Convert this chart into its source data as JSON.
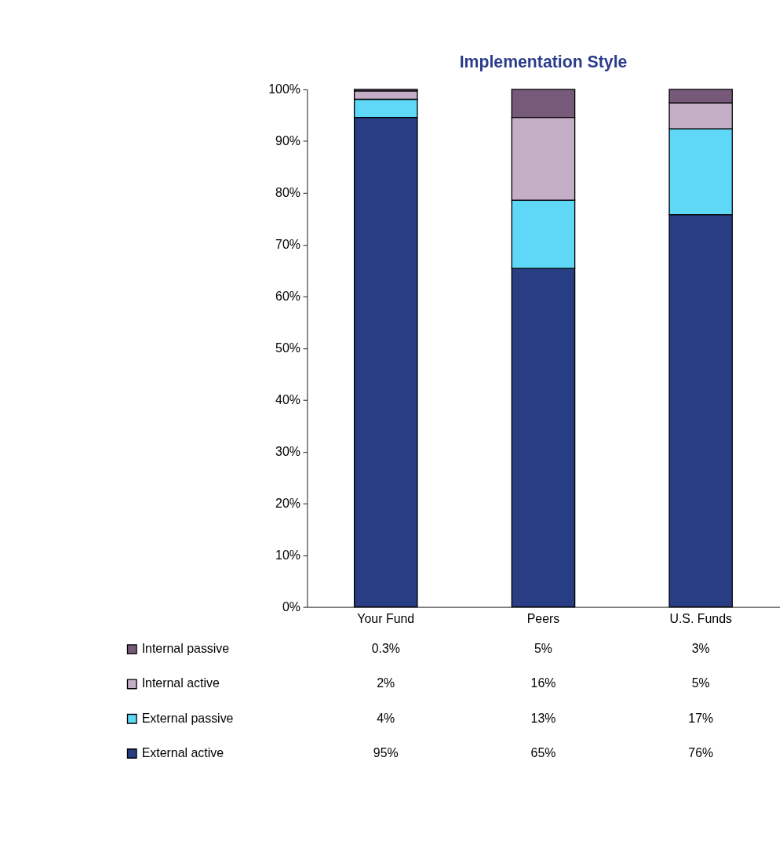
{
  "chart_data": {
    "type": "bar",
    "title": "Implementation Style",
    "stacked": true,
    "categories": [
      "Your Fund",
      "Peers",
      "U.S. Funds"
    ],
    "series": [
      {
        "name": "External active",
        "color": "#283d84",
        "values": [
          94.6,
          65.4,
          75.8
        ],
        "value_labels": [
          "95%",
          "65%",
          "76%"
        ]
      },
      {
        "name": "External passive",
        "color": "#5fd7f7",
        "values": [
          3.5,
          13.2,
          16.6
        ],
        "value_labels": [
          "4%",
          "13%",
          "17%"
        ]
      },
      {
        "name": "Internal active",
        "color": "#c4aec6",
        "values": [
          1.6,
          16.0,
          5.0
        ],
        "value_labels": [
          "2%",
          "16%",
          "5%"
        ]
      },
      {
        "name": "Internal passive",
        "color": "#775a7a",
        "values": [
          0.3,
          5.4,
          2.6
        ],
        "value_labels": [
          "0.3%",
          "5%",
          "3%"
        ]
      }
    ],
    "ylim": [
      0,
      100
    ],
    "yticks": [
      {
        "value": 0,
        "label": "0%"
      },
      {
        "value": 10,
        "label": "10%"
      },
      {
        "value": 20,
        "label": "20%"
      },
      {
        "value": 30,
        "label": "30%"
      },
      {
        "value": 40,
        "label": "40%"
      },
      {
        "value": 50,
        "label": "50%"
      },
      {
        "value": 60,
        "label": "60%"
      },
      {
        "value": 70,
        "label": "70%"
      },
      {
        "value": 80,
        "label": "80%"
      },
      {
        "value": 90,
        "label": "90%"
      },
      {
        "value": 100,
        "label": "100%"
      }
    ],
    "grid": false,
    "legend": "bottom"
  }
}
